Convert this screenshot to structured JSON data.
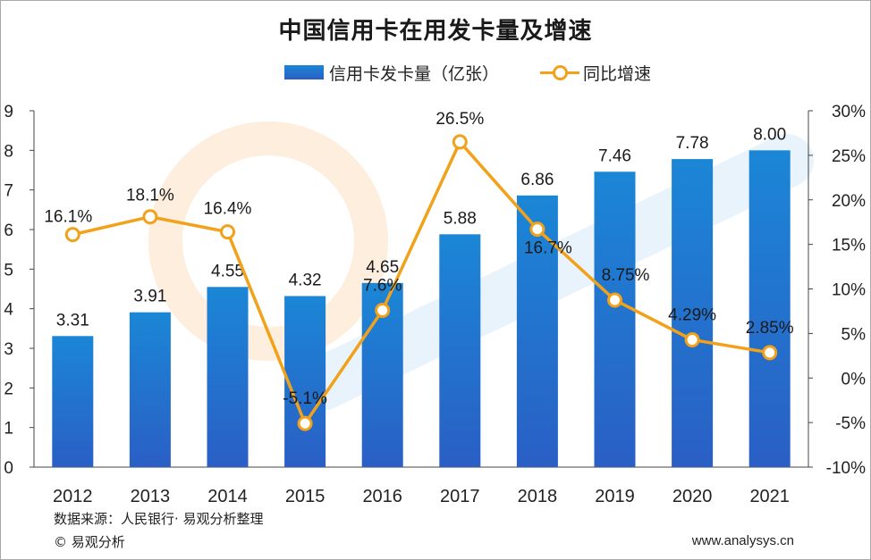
{
  "chart_data": {
    "type": "bar",
    "title": "中国信用卡在用发卡量及增速",
    "categories": [
      "2012",
      "2013",
      "2014",
      "2015",
      "2016",
      "2017",
      "2018",
      "2019",
      "2020",
      "2021"
    ],
    "series": [
      {
        "name": "信用卡发卡量（亿张）",
        "type": "bar",
        "axis": "left",
        "values": [
          3.31,
          3.91,
          4.55,
          4.32,
          4.65,
          5.88,
          6.86,
          7.46,
          7.78,
          8.0
        ],
        "labels": [
          "3.31",
          "3.91",
          "4.55",
          "4.32",
          "4.65",
          "5.88",
          "6.86",
          "7.46",
          "7.78",
          "8.00"
        ]
      },
      {
        "name": "同比增速",
        "type": "line",
        "axis": "right",
        "values": [
          16.1,
          18.1,
          16.4,
          -5.1,
          7.6,
          26.5,
          16.7,
          8.75,
          4.29,
          2.85
        ],
        "labels": [
          "16.1%",
          "18.1%",
          "16.4%",
          "-5.1%",
          "7.6%",
          "26.5%",
          "16.7%",
          "8.75%",
          "4.29%",
          "2.85%"
        ]
      }
    ],
    "left_axis": {
      "ylim": [
        0,
        9
      ],
      "ticks": [
        "0",
        "1",
        "2",
        "3",
        "4",
        "5",
        "6",
        "7",
        "8",
        "9"
      ]
    },
    "right_axis": {
      "ylim": [
        -10,
        30
      ],
      "ticks": [
        "-10%",
        "-5%",
        "0%",
        "5%",
        "10%",
        "15%",
        "20%",
        "25%",
        "30%"
      ]
    },
    "legend_position": "top-center",
    "grid": false,
    "colors": {
      "bar_top": "#1b86d6",
      "bar_bottom": "#2a5fc5",
      "line": "#f2a11a",
      "axis": "#444444"
    }
  },
  "footer": {
    "source": "数据来源：人民银行· 易观分析整理",
    "copyright": "© 易观分析",
    "website": "www.analysys.cn"
  }
}
